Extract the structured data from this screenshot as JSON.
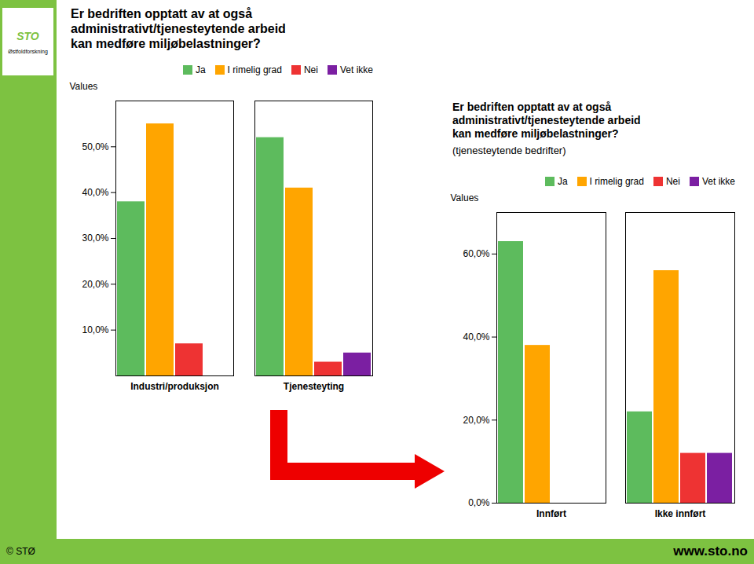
{
  "chart_data": [
    {
      "type": "bar",
      "title": "Er bedriften opptatt av at også\nadministrativt/tjenesteytende arbeid\nkan medføre miljøbelastninger?",
      "categories": [
        "Industri/produksjon",
        "Tjenesteyting"
      ],
      "series": [
        {
          "name": "Ja",
          "color": "#5DBB5D",
          "values": [
            38.0,
            52.0
          ]
        },
        {
          "name": "I rimelig grad",
          "color": "#FFA500",
          "values": [
            55.0,
            41.0
          ]
        },
        {
          "name": "Nei",
          "color": "#EE3333",
          "values": [
            7.0,
            3.0
          ]
        },
        {
          "name": "Vet ikke",
          "color": "#7B1FA2",
          "values": [
            0.0,
            5.0
          ]
        }
      ],
      "ylabel": "Values",
      "ylim": [
        0,
        60
      ],
      "yticks": [
        {
          "value": 10,
          "label": "10,0%"
        },
        {
          "value": 20,
          "label": "20,0%"
        },
        {
          "value": 30,
          "label": "30,0%"
        },
        {
          "value": 40,
          "label": "40,0%"
        },
        {
          "value": 50,
          "label": "50,0%"
        }
      ],
      "grid": false,
      "legend": "upper right",
      "annotations": [
        "STO",
        "Østfoldforskning",
        "© STØ",
        "www.sto.no"
      ]
    },
    {
      "type": "bar",
      "title": "Er bedriften opptatt av at også\nadministrativt/tjenesteytende arbeid\nkan medføre miljøbelastninger?",
      "subtitle": "(tjenesteytende bedrifter)",
      "categories": [
        "Innført",
        "Ikke innført"
      ],
      "series": [
        {
          "name": "Ja",
          "color": "#5DBB5D",
          "values": [
            63.0,
            22.0
          ]
        },
        {
          "name": "I rimelig grad",
          "color": "#FFA500",
          "values": [
            38.0,
            56.0
          ]
        },
        {
          "name": "Nei",
          "color": "#EE3333",
          "values": [
            0.0,
            12.0
          ]
        },
        {
          "name": "Vet ikke",
          "color": "#7B1FA2",
          "values": [
            0.0,
            12.0
          ]
        }
      ],
      "ylabel": "Values",
      "ylim": [
        0,
        70
      ],
      "yticks": [
        {
          "value": 0,
          "label": "0,0%"
        },
        {
          "value": 20,
          "label": "20,0%"
        },
        {
          "value": 40,
          "label": "40,0%"
        },
        {
          "value": 60,
          "label": "60,0%"
        }
      ],
      "grid": false,
      "legend": "upper right"
    }
  ]
}
